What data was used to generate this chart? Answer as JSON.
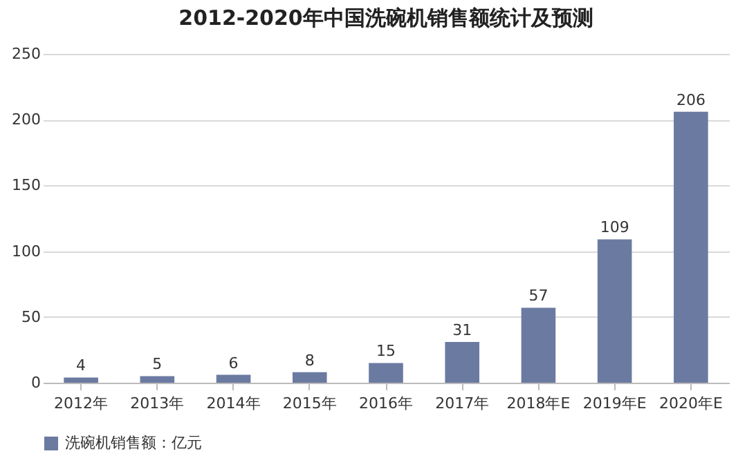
{
  "chart_data": {
    "type": "bar",
    "title": "2012-2020年中国洗碗机销售额统计及预测",
    "categories": [
      "2012年",
      "2013年",
      "2014年",
      "2015年",
      "2016年",
      "2017年",
      "2018年E",
      "2019年E",
      "2020年E"
    ],
    "series": [
      {
        "name": "洗碗机销售额：亿元",
        "color": "#6b7aa1",
        "values": [
          4,
          5,
          6,
          8,
          15,
          31,
          57,
          109,
          206
        ]
      }
    ],
    "ylim": [
      0,
      250
    ],
    "yticks": [
      0,
      50,
      100,
      150,
      200,
      250
    ],
    "grid": "y",
    "legend": "bottom",
    "data_labels": true
  }
}
